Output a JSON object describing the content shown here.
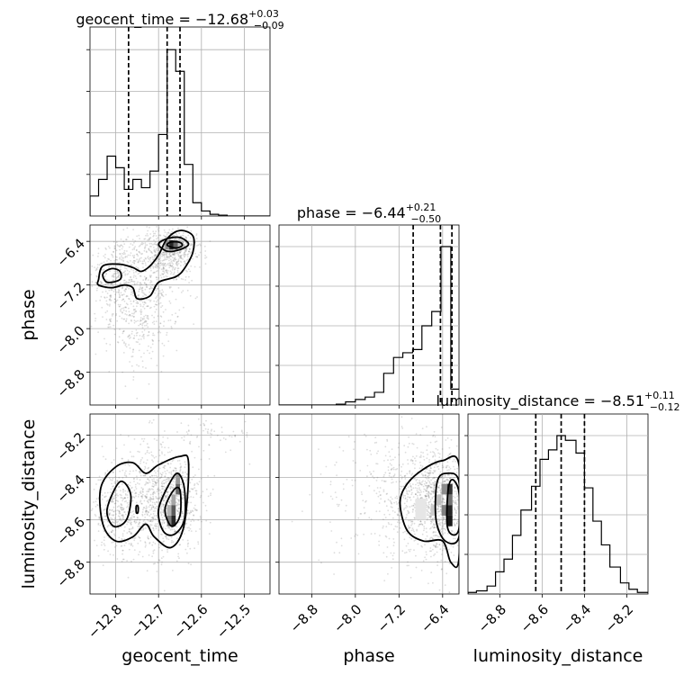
{
  "chart_data": {
    "type": "corner",
    "parameters": [
      {
        "key": "geocent_time",
        "label": "geocent_time",
        "range": [
          -12.86,
          -12.44
        ],
        "ticks": [
          -12.8,
          -12.7,
          -12.6,
          -12.5
        ],
        "tick_labels": [
          "−12.8",
          "−12.7",
          "−12.6",
          "−12.5"
        ],
        "title": {
          "prefix": "geocent_time = ",
          "median": "−12.68",
          "plus": "+0.03",
          "minus": "−0.09"
        },
        "quantiles": [
          -12.77,
          -12.68,
          -12.65
        ],
        "hist_edges": [
          -12.86,
          -12.84,
          -12.82,
          -12.8,
          -12.78,
          -12.76,
          -12.74,
          -12.72,
          -12.7,
          -12.68,
          -12.66,
          -12.64,
          -12.62,
          -12.6,
          -12.58,
          -12.56,
          -12.54,
          -12.52,
          -12.5,
          -12.48,
          -12.46,
          -12.44
        ],
        "hist_counts": [
          0.12,
          0.22,
          0.36,
          0.29,
          0.16,
          0.22,
          0.17,
          0.27,
          0.49,
          1.0,
          0.87,
          0.31,
          0.08,
          0.03,
          0.01,
          0.005,
          0,
          0,
          0,
          0,
          0
        ]
      },
      {
        "key": "phase",
        "label": "phase",
        "range": [
          -9.4,
          -6.1
        ],
        "ticks": [
          -8.8,
          -8.0,
          -7.2,
          -6.4
        ],
        "tick_labels": [
          "−8.8",
          "−8.0",
          "−7.2",
          "−6.4"
        ],
        "title": {
          "prefix": "phase = ",
          "median": "−6.44",
          "plus": "+0.21",
          "minus": "−0.50"
        },
        "quantiles": [
          -6.94,
          -6.44,
          -6.23
        ],
        "hist_edges": [
          -9.4,
          -9.22,
          -9.05,
          -8.87,
          -8.7,
          -8.53,
          -8.35,
          -8.18,
          -8.0,
          -7.82,
          -7.65,
          -7.48,
          -7.3,
          -7.13,
          -6.95,
          -6.78,
          -6.6,
          -6.43,
          -6.25,
          -6.1
        ],
        "hist_counts": [
          0,
          0,
          0,
          0,
          0,
          0,
          0.005,
          0.02,
          0.035,
          0.05,
          0.08,
          0.2,
          0.3,
          0.33,
          0.35,
          0.5,
          0.59,
          1.0,
          0.1
        ]
      },
      {
        "key": "luminosity_distance",
        "label": "luminosity_distance",
        "range": [
          -8.95,
          -8.1
        ],
        "ticks": [
          -8.8,
          -8.6,
          -8.4,
          -8.2
        ],
        "tick_labels": [
          "−8.8",
          "−8.6",
          "−8.4",
          "−8.2"
        ],
        "title": {
          "prefix": "luminosity_distance = ",
          "median": "−8.51",
          "plus": "+0.11",
          "minus": "−0.12"
        },
        "quantiles": [
          -8.63,
          -8.51,
          -8.4
        ],
        "hist_edges": [
          -8.95,
          -8.91,
          -8.86,
          -8.82,
          -8.78,
          -8.74,
          -8.7,
          -8.65,
          -8.61,
          -8.57,
          -8.53,
          -8.49,
          -8.44,
          -8.4,
          -8.36,
          -8.32,
          -8.28,
          -8.23,
          -8.19,
          -8.15,
          -8.1
        ],
        "hist_counts": [
          0.01,
          0.02,
          0.05,
          0.14,
          0.22,
          0.37,
          0.53,
          0.68,
          0.85,
          0.91,
          1.0,
          0.97,
          0.89,
          0.67,
          0.46,
          0.31,
          0.17,
          0.07,
          0.03,
          0.01
        ]
      }
    ],
    "pairs": [
      {
        "x": "geocent_time",
        "y": "phase",
        "samples": [
          {
            "cx": -12.8,
            "cy": -7.0,
            "sx": 0.03,
            "sy": 0.35,
            "n": 260
          },
          {
            "cx": -12.73,
            "cy": -7.35,
            "sx": 0.04,
            "sy": 0.5,
            "n": 420
          },
          {
            "cx": -12.68,
            "cy": -6.65,
            "sx": 0.04,
            "sy": 0.25,
            "n": 420
          },
          {
            "cx": -12.66,
            "cy": -6.45,
            "sx": 0.025,
            "sy": 0.12,
            "n": 260
          },
          {
            "cx": -12.76,
            "cy": -8.0,
            "sx": 0.04,
            "sy": 0.45,
            "n": 140
          }
        ],
        "density_cells": [
          {
            "x0": -12.675,
            "x1": -12.665,
            "y0": -6.55,
            "y1": -6.38,
            "level": 0.85
          },
          {
            "x0": -12.665,
            "x1": -12.655,
            "y0": -6.55,
            "y1": -6.38,
            "level": 0.6
          },
          {
            "x0": -12.685,
            "x1": -12.675,
            "y0": -6.55,
            "y1": -6.38,
            "level": 0.45
          },
          {
            "x0": -12.655,
            "x1": -12.645,
            "y0": -6.55,
            "y1": -6.38,
            "level": 0.25
          }
        ],
        "contours": [
          [
            [
              -12.84,
              -7.1
            ],
            [
              -12.83,
              -6.85
            ],
            [
              -12.79,
              -6.82
            ],
            [
              -12.76,
              -6.88
            ],
            [
              -12.74,
              -6.95
            ],
            [
              -12.72,
              -6.85
            ],
            [
              -12.7,
              -6.65
            ],
            [
              -12.68,
              -6.35
            ],
            [
              -12.65,
              -6.2
            ],
            [
              -12.62,
              -6.3
            ],
            [
              -12.62,
              -6.6
            ],
            [
              -12.64,
              -6.9
            ],
            [
              -12.66,
              -7.05
            ],
            [
              -12.7,
              -7.15
            ],
            [
              -12.72,
              -7.4
            ],
            [
              -12.75,
              -7.45
            ],
            [
              -12.76,
              -7.25
            ],
            [
              -12.78,
              -7.2
            ],
            [
              -12.81,
              -7.25
            ],
            [
              -12.84,
              -7.2
            ]
          ],
          [
            [
              -12.83,
              -7.0
            ],
            [
              -12.81,
              -6.9
            ],
            [
              -12.79,
              -6.95
            ],
            [
              -12.79,
              -7.1
            ],
            [
              -12.82,
              -7.15
            ]
          ],
          [
            [
              -12.7,
              -6.45
            ],
            [
              -12.68,
              -6.35
            ],
            [
              -12.65,
              -6.33
            ],
            [
              -12.63,
              -6.45
            ],
            [
              -12.65,
              -6.55
            ],
            [
              -12.68,
              -6.58
            ]
          ],
          [
            [
              -12.68,
              -6.47
            ],
            [
              -12.67,
              -6.41
            ],
            [
              -12.65,
              -6.42
            ],
            [
              -12.645,
              -6.48
            ],
            [
              -12.66,
              -6.52
            ]
          ]
        ]
      },
      {
        "x": "geocent_time",
        "y": "luminosity_distance",
        "samples": [
          {
            "cx": -12.8,
            "cy": -8.55,
            "sx": 0.025,
            "sy": 0.1,
            "n": 320
          },
          {
            "cx": -12.67,
            "cy": -8.52,
            "sx": 0.035,
            "sy": 0.11,
            "n": 650
          },
          {
            "cx": -12.73,
            "cy": -8.5,
            "sx": 0.05,
            "sy": 0.14,
            "n": 400
          },
          {
            "cx": -12.57,
            "cy": -8.2,
            "sx": 0.05,
            "sy": 0.04,
            "n": 60
          }
        ],
        "density_cells": [
          {
            "x0": -12.67,
            "x1": -12.66,
            "y0": -8.63,
            "y1": -8.58,
            "level": 0.85
          },
          {
            "x0": -12.67,
            "x1": -12.66,
            "y0": -8.58,
            "y1": -8.53,
            "level": 0.65
          },
          {
            "x0": -12.68,
            "x1": -12.67,
            "y0": -8.63,
            "y1": -8.58,
            "level": 0.5
          },
          {
            "x0": -12.66,
            "x1": -12.65,
            "y0": -8.48,
            "y1": -8.43,
            "level": 0.6
          },
          {
            "x0": -12.66,
            "x1": -12.65,
            "y0": -8.43,
            "y1": -8.38,
            "level": 0.4
          },
          {
            "x0": -12.67,
            "x1": -12.66,
            "y0": -8.53,
            "y1": -8.48,
            "level": 0.35
          },
          {
            "x0": -12.68,
            "x1": -12.67,
            "y0": -8.58,
            "y1": -8.53,
            "level": 0.3
          }
        ],
        "contours": [
          [
            [
              -12.835,
              -8.45
            ],
            [
              -12.8,
              -8.35
            ],
            [
              -12.76,
              -8.33
            ],
            [
              -12.73,
              -8.38
            ],
            [
              -12.7,
              -8.34
            ],
            [
              -12.65,
              -8.3
            ],
            [
              -12.63,
              -8.33
            ],
            [
              -12.64,
              -8.62
            ],
            [
              -12.67,
              -8.73
            ],
            [
              -12.71,
              -8.68
            ],
            [
              -12.73,
              -8.62
            ],
            [
              -12.76,
              -8.68
            ],
            [
              -12.8,
              -8.7
            ],
            [
              -12.83,
              -8.62
            ]
          ],
          [
            [
              -12.82,
              -8.55
            ],
            [
              -12.79,
              -8.42
            ],
            [
              -12.765,
              -8.48
            ],
            [
              -12.775,
              -8.6
            ],
            [
              -12.805,
              -8.63
            ]
          ],
          [
            [
              -12.7,
              -8.55
            ],
            [
              -12.675,
              -8.43
            ],
            [
              -12.655,
              -8.38
            ],
            [
              -12.64,
              -8.45
            ],
            [
              -12.64,
              -8.6
            ],
            [
              -12.665,
              -8.67
            ],
            [
              -12.69,
              -8.65
            ]
          ],
          [
            [
              -12.685,
              -8.55
            ],
            [
              -12.665,
              -8.46
            ],
            [
              -12.65,
              -8.46
            ],
            [
              -12.65,
              -8.58
            ],
            [
              -12.67,
              -8.63
            ]
          ],
          [
            [
              -12.752,
              -8.535
            ],
            [
              -12.748,
              -8.535
            ],
            [
              -12.748,
              -8.565
            ],
            [
              -12.752,
              -8.565
            ]
          ]
        ]
      },
      {
        "x": "phase",
        "y": "luminosity_distance",
        "samples": [
          {
            "cx": -6.5,
            "cy": -8.52,
            "sx": 0.22,
            "sy": 0.12,
            "n": 650
          },
          {
            "cx": -6.9,
            "cy": -8.5,
            "sx": 0.4,
            "sy": 0.14,
            "n": 400
          },
          {
            "cx": -7.6,
            "cy": -8.5,
            "sx": 0.6,
            "sy": 0.16,
            "n": 150
          }
        ],
        "density_cells": [
          {
            "x0": -6.32,
            "x1": -6.22,
            "y0": -8.63,
            "y1": -8.58,
            "level": 0.9
          },
          {
            "x0": -6.32,
            "x1": -6.22,
            "y0": -8.58,
            "y1": -8.53,
            "level": 0.85
          },
          {
            "x0": -6.32,
            "x1": -6.22,
            "y0": -8.48,
            "y1": -8.43,
            "level": 0.8
          },
          {
            "x0": -6.42,
            "x1": -6.32,
            "y0": -8.58,
            "y1": -8.53,
            "level": 0.5
          },
          {
            "x0": -6.42,
            "x1": -6.32,
            "y0": -8.48,
            "y1": -8.43,
            "level": 0.45
          },
          {
            "x0": -6.52,
            "x1": -6.42,
            "y0": -8.53,
            "y1": -8.48,
            "level": 0.25
          },
          {
            "x0": -6.62,
            "x1": -6.52,
            "y0": -8.58,
            "y1": -8.53,
            "level": 0.2
          },
          {
            "x0": -6.32,
            "x1": -6.22,
            "y0": -8.53,
            "y1": -8.48,
            "level": 0.55
          },
          {
            "x0": -6.9,
            "x1": -6.7,
            "y0": -8.6,
            "y1": -8.5,
            "level": 0.1
          }
        ],
        "contours": [
          [
            [
              -6.1,
              -8.34
            ],
            [
              -6.4,
              -8.32
            ],
            [
              -6.75,
              -8.36
            ],
            [
              -7.05,
              -8.43
            ],
            [
              -7.18,
              -8.52
            ],
            [
              -7.05,
              -8.65
            ],
            [
              -6.75,
              -8.7
            ],
            [
              -6.4,
              -8.7
            ],
            [
              -6.25,
              -8.8
            ],
            [
              -6.1,
              -8.78
            ]
          ],
          [
            [
              -6.1,
              -8.42
            ],
            [
              -6.32,
              -8.38
            ],
            [
              -6.5,
              -8.42
            ],
            [
              -6.52,
              -8.6
            ],
            [
              -6.35,
              -8.7
            ],
            [
              -6.1,
              -8.68
            ]
          ],
          [
            [
              -6.1,
              -8.47
            ],
            [
              -6.22,
              -8.41
            ],
            [
              -6.3,
              -8.46
            ],
            [
              -6.32,
              -8.62
            ],
            [
              -6.22,
              -8.67
            ],
            [
              -6.1,
              -8.64
            ]
          ]
        ]
      }
    ],
    "grid": true
  }
}
